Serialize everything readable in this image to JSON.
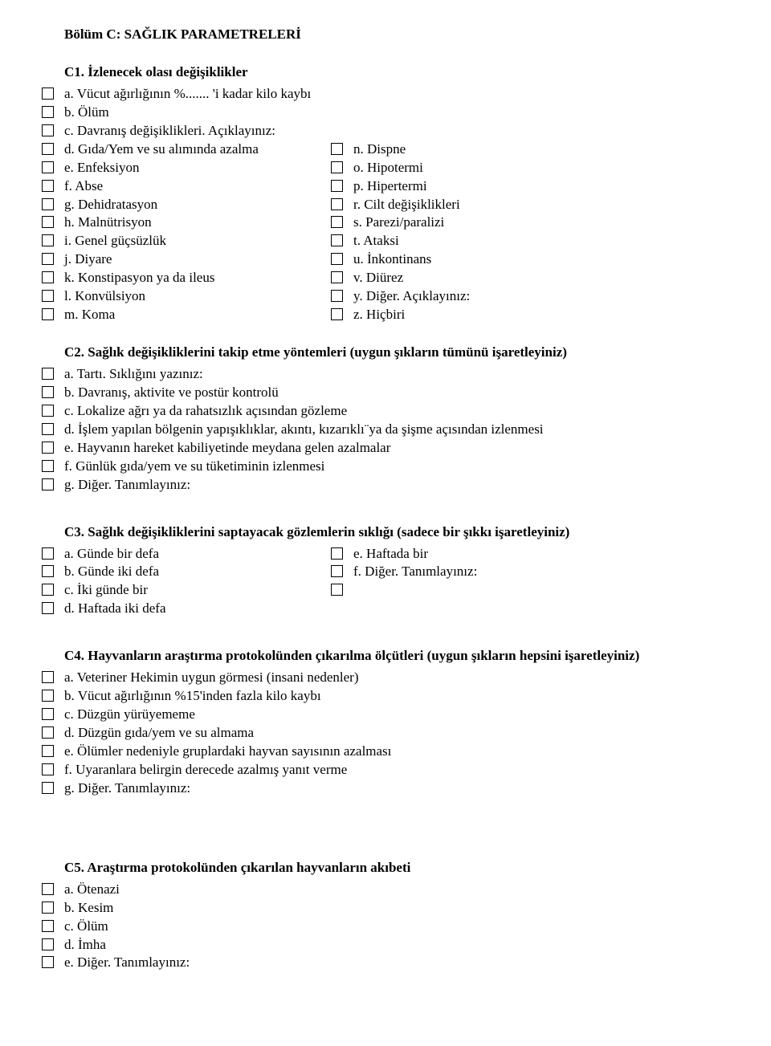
{
  "sectionTitle": "Bölüm C: SAĞLIK PARAMETRELERİ",
  "c1": {
    "title": "C1. İzlenecek olası değişiklikler",
    "left": [
      "a. Vücut ağırlığının %....... 'i kadar kilo kaybı",
      "b. Ölüm",
      "c. Davranış değişiklikleri. Açıklayınız:",
      "d. Gıda/Yem ve su alımında azalma",
      "e. Enfeksiyon",
      "f. Abse",
      "g. Dehidratasyon",
      "h. Malnütrisyon",
      "i. Genel güçsüzlük",
      "j. Diyare",
      "k. Konstipasyon ya da ileus",
      "l. Konvülsiyon",
      "m. Koma"
    ],
    "rightStart": 3,
    "right": [
      "n. Dispne",
      "o. Hipotermi",
      "p. Hipertermi",
      "r. Cilt değişiklikleri",
      "s. Parezi/paralizi",
      "t. Ataksi",
      "u. İnkontinans",
      "v. Diürez",
      "y. Diğer. Açıklayınız:",
      "z. Hiçbiri"
    ]
  },
  "c2": {
    "title": "C2. Sağlık değişikliklerini takip etme yöntemleri (uygun şıkların tümünü işaretleyiniz)",
    "items": [
      "a. Tartı. Sıklığını yazınız:",
      "b. Davranış, aktivite ve postür kontrolü",
      "c. Lokalize ağrı ya da rahatsızlık açısından gözleme",
      "d. İşlem yapılan bölgenin yapışıklıklar, akıntı, kızarıklı¨ya da şişme açısından izlenmesi",
      "e. Hayvanın hareket kabiliyetinde meydana gelen azalmalar",
      "f. Günlük gıda/yem ve su tüketiminin izlenmesi",
      "g. Diğer. Tanımlayınız:"
    ]
  },
  "c3": {
    "title": "C3. Sağlık değişikliklerini saptayacak gözlemlerin sıklığı (sadece bir şıkkı işaretleyiniz)",
    "left": [
      "a. Günde bir defa",
      "b. Günde iki defa",
      "c. İki günde bir",
      "d. Haftada iki defa"
    ],
    "right": [
      "e. Haftada bir",
      "f. Diğer. Tanımlayınız:",
      ""
    ]
  },
  "c4": {
    "title": "C4. Hayvanların araştırma protokolünden çıkarılma ölçütleri (uygun şıkların hepsini işaretleyiniz)",
    "items": [
      "a. Veteriner Hekimin uygun görmesi (insani nedenler)",
      "b. Vücut ağırlığının %15'inden fazla kilo kaybı",
      "c. Düzgün yürüyememe",
      "d. Düzgün gıda/yem ve su almama",
      "e. Ölümler nedeniyle gruplardaki hayvan sayısının azalması",
      "f. Uyaranlara belirgin derecede azalmış yanıt verme",
      "g. Diğer. Tanımlayınız:"
    ]
  },
  "c5": {
    "title": "C5. Araştırma protokolünden çıkarılan hayvanların akıbeti",
    "items": [
      "a. Ötenazi",
      "b. Kesim",
      "c. Ölüm",
      "d. İmha",
      "e. Diğer. Tanımlayınız:"
    ]
  }
}
